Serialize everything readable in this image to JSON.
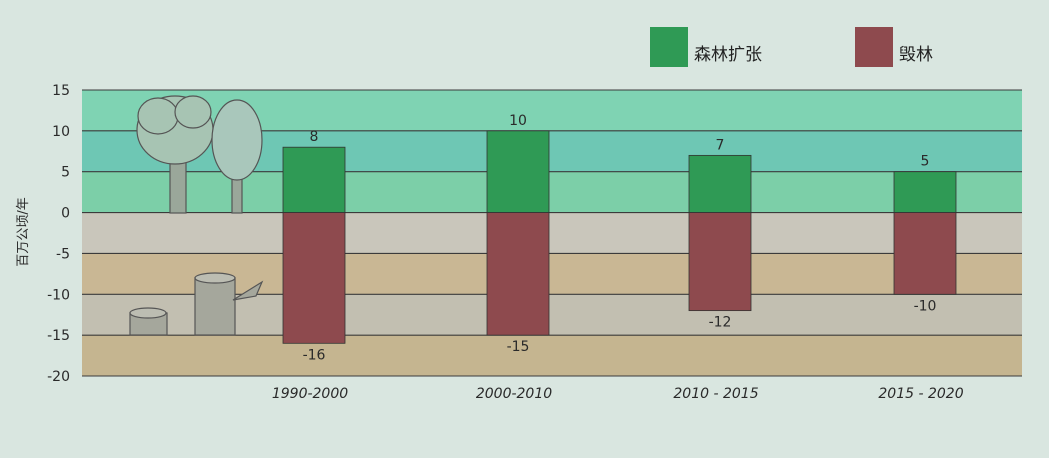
{
  "chart_data": {
    "type": "bar",
    "categories": [
      "1990-2000",
      "2000-2010",
      "2010 - 2015",
      "2015 - 2020"
    ],
    "series": [
      {
        "name": "森林扩张",
        "values": [
          8,
          10,
          7,
          5
        ],
        "color": "#2f9a55"
      },
      {
        "name": "毁林",
        "values": [
          -16,
          -15,
          -12,
          -10
        ],
        "color": "#8e4a4e"
      }
    ],
    "data_labels": {
      "positive": [
        "8",
        "10",
        "7",
        "5"
      ],
      "negative": [
        "-16",
        "-15",
        "-12",
        "-10"
      ]
    },
    "title": "",
    "xlabel": "",
    "ylabel": "百万公顷/年",
    "ylim": [
      -20,
      15
    ],
    "yticks": [
      15,
      10,
      5,
      0,
      -5,
      -10,
      -15,
      -20
    ],
    "ytick_labels": [
      "15",
      "10",
      "5",
      "0",
      "-5",
      "-10",
      "-15",
      "-20"
    ],
    "legend_position": "top-right",
    "grid": true,
    "band_colors": {
      "positive": [
        "#7fd3b3",
        "#6ec7b4",
        "#7ccfa8"
      ],
      "negative": [
        "#c9c6bb",
        "#c9b794",
        "#c2bfb1",
        "#c5b590"
      ]
    }
  }
}
